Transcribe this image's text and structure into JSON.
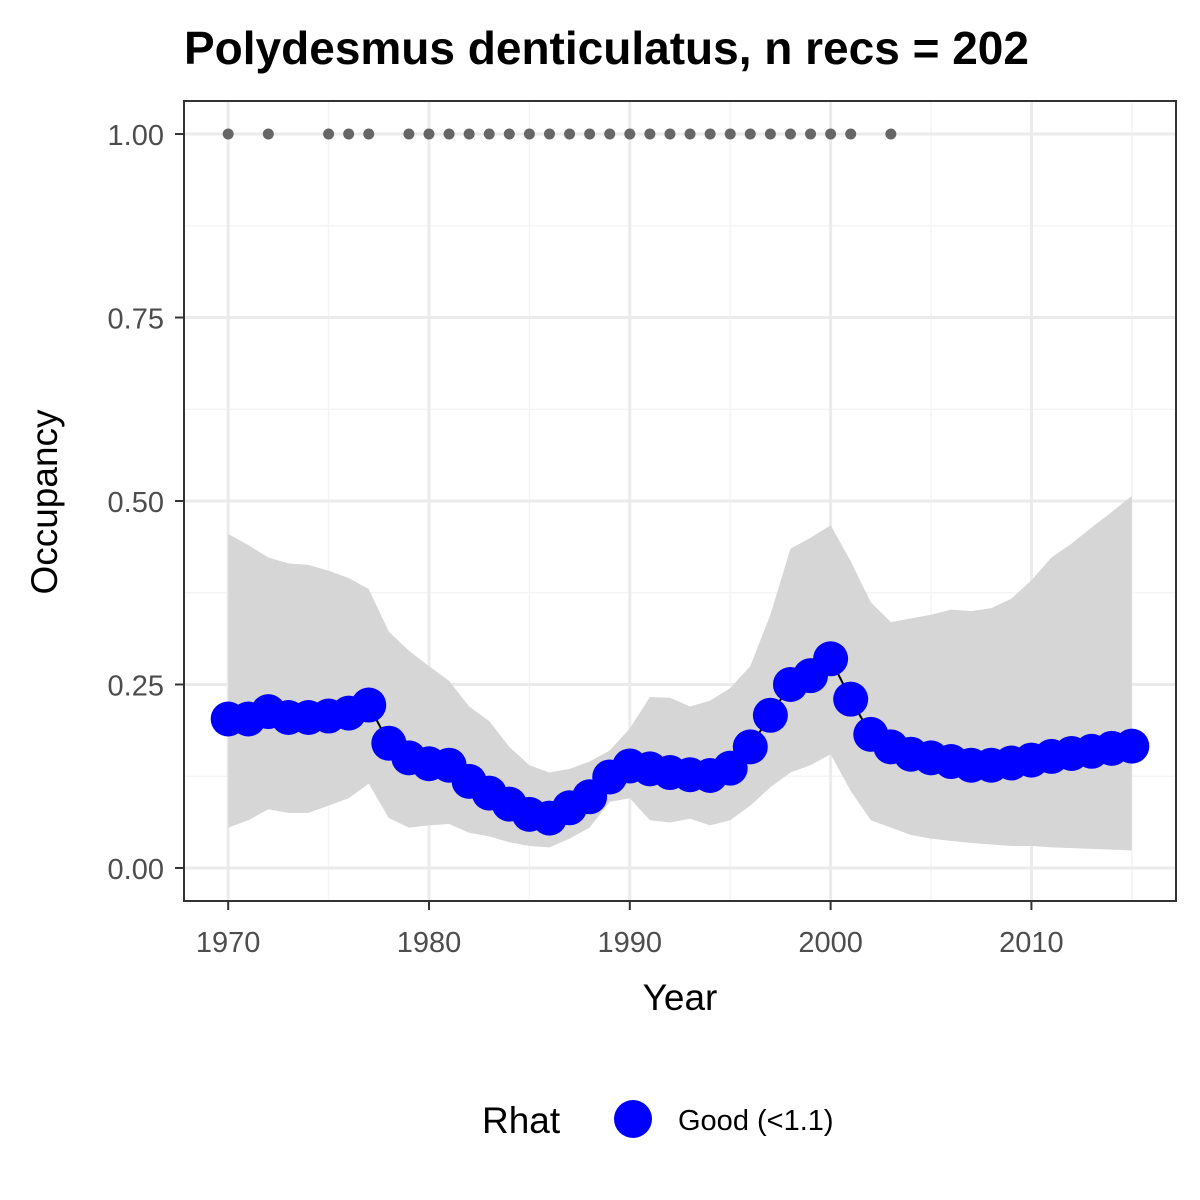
{
  "chart_data": {
    "type": "line",
    "title": "Polydesmus denticulatus, n recs = 202",
    "xlabel": "Year",
    "ylabel": "Occupancy",
    "xlim": [
      1967.8,
      2017.2
    ],
    "ylim": [
      -0.045,
      1.045
    ],
    "x_ticks": [
      1970,
      1980,
      1990,
      2000,
      2010
    ],
    "x_tick_labels": [
      "1970",
      "1980",
      "1990",
      "2000",
      "2010"
    ],
    "y_ticks": [
      0,
      0.25,
      0.5,
      0.75,
      1.0
    ],
    "y_tick_labels": [
      "0.00",
      "0.25",
      "0.50",
      "0.75",
      "1.00"
    ],
    "grid": true,
    "colors": {
      "occupancy": "#0000ff",
      "ribbon": "#d6d6d6",
      "records": "#666666",
      "grid_major": "#ebebeb",
      "grid_minor": "#f4f4f4",
      "panel_border": "#333333"
    },
    "series": [
      {
        "name": "Occupancy",
        "x": [
          1970,
          1971,
          1972,
          1973,
          1974,
          1975,
          1976,
          1977,
          1978,
          1979,
          1980,
          1981,
          1982,
          1983,
          1984,
          1985,
          1986,
          1987,
          1988,
          1989,
          1990,
          1991,
          1992,
          1993,
          1994,
          1995,
          1996,
          1997,
          1998,
          1999,
          2000,
          2001,
          2002,
          2003,
          2004,
          2005,
          2006,
          2007,
          2008,
          2009,
          2010,
          2011,
          2012,
          2013,
          2014,
          2015
        ],
        "y": [
          0.203,
          0.203,
          0.213,
          0.205,
          0.205,
          0.207,
          0.211,
          0.222,
          0.17,
          0.15,
          0.142,
          0.14,
          0.118,
          0.102,
          0.087,
          0.073,
          0.068,
          0.082,
          0.097,
          0.124,
          0.139,
          0.135,
          0.13,
          0.127,
          0.126,
          0.136,
          0.165,
          0.208,
          0.25,
          0.262,
          0.285,
          0.23,
          0.182,
          0.165,
          0.155,
          0.15,
          0.145,
          0.14,
          0.14,
          0.143,
          0.147,
          0.152,
          0.156,
          0.159,
          0.163,
          0.166
        ],
        "lower": [
          0.055,
          0.065,
          0.08,
          0.075,
          0.075,
          0.085,
          0.095,
          0.115,
          0.068,
          0.055,
          0.058,
          0.06,
          0.048,
          0.043,
          0.035,
          0.03,
          0.028,
          0.04,
          0.055,
          0.09,
          0.095,
          0.065,
          0.062,
          0.067,
          0.058,
          0.065,
          0.085,
          0.11,
          0.13,
          0.14,
          0.155,
          0.105,
          0.065,
          0.055,
          0.045,
          0.04,
          0.037,
          0.034,
          0.032,
          0.03,
          0.03,
          0.028,
          0.027,
          0.026,
          0.025,
          0.024
        ],
        "upper": [
          0.455,
          0.44,
          0.423,
          0.415,
          0.413,
          0.405,
          0.395,
          0.38,
          0.322,
          0.296,
          0.275,
          0.255,
          0.22,
          0.2,
          0.165,
          0.14,
          0.13,
          0.135,
          0.145,
          0.16,
          0.19,
          0.233,
          0.232,
          0.22,
          0.228,
          0.245,
          0.275,
          0.345,
          0.435,
          0.45,
          0.467,
          0.418,
          0.362,
          0.335,
          0.34,
          0.345,
          0.352,
          0.35,
          0.354,
          0.367,
          0.392,
          0.423,
          0.442,
          0.464,
          0.485,
          0.507
        ]
      },
      {
        "name": "Records",
        "x": [
          1970,
          1972,
          1975,
          1976,
          1977,
          1979,
          1980,
          1981,
          1982,
          1983,
          1984,
          1985,
          1986,
          1987,
          1988,
          1989,
          1990,
          1991,
          1992,
          1993,
          1994,
          1995,
          1996,
          1997,
          1998,
          1999,
          2000,
          2001,
          2003
        ],
        "y": [
          1,
          1,
          1,
          1,
          1,
          1,
          1,
          1,
          1,
          1,
          1,
          1,
          1,
          1,
          1,
          1,
          1,
          1,
          1,
          1,
          1,
          1,
          1,
          1,
          1,
          1,
          1,
          1,
          1
        ]
      }
    ],
    "legend": {
      "title": "Rhat",
      "position": "bottom",
      "entries": [
        {
          "label": "Good (<1.1)",
          "color": "#0000ff"
        }
      ]
    }
  }
}
